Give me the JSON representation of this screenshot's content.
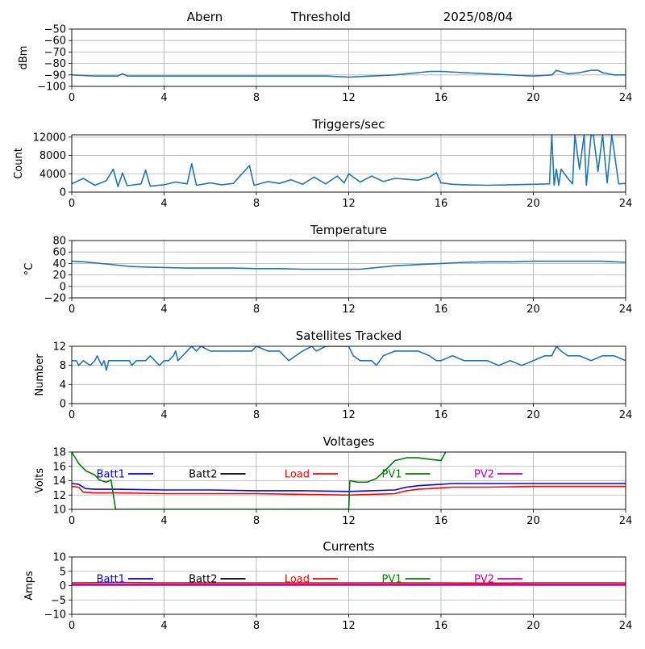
{
  "header": {
    "station": "Abern",
    "mode": "Threshold",
    "date": "2025/08/04"
  },
  "chart_data": [
    {
      "id": "rssi",
      "type": "line",
      "title": "",
      "ylabel": "dBm",
      "xlim": [
        0,
        24
      ],
      "ylim": [
        -100,
        -50
      ],
      "yticks": [
        -50,
        -60,
        -70,
        -80,
        -90,
        -100
      ],
      "xticks": [
        0,
        4,
        8,
        12,
        16,
        20,
        24
      ],
      "grid": true,
      "series": [
        {
          "color": "#1f77b4",
          "x": [
            0,
            1,
            2,
            2.2,
            2.4,
            3,
            4,
            6,
            8,
            10,
            11,
            12,
            13,
            14,
            15,
            15.5,
            16,
            17,
            18,
            19,
            20,
            20.8,
            21,
            21.5,
            22,
            22.5,
            22.8,
            23,
            23.5,
            24
          ],
          "y": [
            -90,
            -91,
            -91,
            -89,
            -91,
            -91,
            -91,
            -91,
            -91,
            -91,
            -91,
            -92,
            -91,
            -90,
            -88,
            -87,
            -87,
            -88,
            -89,
            -90,
            -91,
            -90,
            -86,
            -89,
            -88,
            -86,
            -86,
            -88,
            -90,
            -90
          ]
        }
      ]
    },
    {
      "id": "triggers",
      "type": "line",
      "title": "Triggers/sec",
      "ylabel": "Count",
      "xlim": [
        0,
        24
      ],
      "ylim": [
        0,
        12500
      ],
      "yticks": [
        0,
        4000,
        8000,
        12000
      ],
      "xticks": [
        0,
        4,
        8,
        12,
        16,
        20,
        24
      ],
      "grid": true,
      "series": [
        {
          "color": "#1f77b4",
          "x": [
            0,
            0.5,
            1,
            1.5,
            1.8,
            2,
            2.2,
            2.4,
            3,
            3.2,
            3.4,
            4,
            4.5,
            5,
            5.2,
            5.4,
            6,
            6.5,
            7,
            7.7,
            7.9,
            8,
            8.5,
            9,
            9.5,
            10,
            10.5,
            11,
            11.5,
            11.8,
            12,
            12.5,
            13,
            13.5,
            14,
            14.5,
            15,
            15.5,
            15.8,
            16,
            16.5,
            17,
            18,
            19,
            20,
            20.7,
            20.8,
            20.9,
            21,
            21.1,
            21.2,
            21.5,
            21.7,
            21.8,
            22,
            22.2,
            22.3,
            22.5,
            22.6,
            22.8,
            23,
            23.2,
            23.4,
            23.7,
            24
          ],
          "y": [
            1800,
            3000,
            1500,
            2500,
            5000,
            1200,
            4200,
            1400,
            1800,
            4800,
            1300,
            1600,
            2200,
            1800,
            6200,
            1500,
            2000,
            1600,
            1900,
            5800,
            1500,
            1600,
            2300,
            1900,
            2700,
            1700,
            3300,
            1800,
            3500,
            2000,
            4000,
            2200,
            3500,
            2300,
            3000,
            2800,
            2600,
            3300,
            4200,
            2000,
            1700,
            1600,
            1500,
            1600,
            1700,
            1800,
            12500,
            1500,
            5000,
            1500,
            5000,
            3000,
            1800,
            12500,
            5000,
            12500,
            1500,
            12500,
            12500,
            4500,
            12500,
            2000,
            12500,
            1800,
            1900
          ]
        }
      ]
    },
    {
      "id": "temperature",
      "type": "line",
      "title": "Temperature",
      "ylabel": "°C",
      "xlim": [
        0,
        24
      ],
      "ylim": [
        -20,
        80
      ],
      "yticks": [
        -20,
        0,
        20,
        40,
        60,
        80
      ],
      "xticks": [
        0,
        4,
        8,
        12,
        16,
        20,
        24
      ],
      "grid": true,
      "series": [
        {
          "color": "#1f77b4",
          "x": [
            0,
            0.5,
            1,
            1.5,
            2,
            2.5,
            3,
            4,
            5,
            6,
            7,
            8,
            9,
            10,
            11,
            12,
            12.5,
            13,
            13.5,
            14,
            15,
            16,
            16.5,
            17,
            18,
            19,
            20,
            21,
            22,
            23,
            23.5,
            24
          ],
          "y": [
            44,
            43,
            41,
            39,
            37,
            35,
            34,
            33,
            32,
            32,
            32,
            31,
            31,
            30,
            30,
            30,
            30,
            32,
            34,
            36,
            38,
            40,
            41,
            42,
            43,
            43,
            44,
            44,
            44,
            44,
            43,
            42
          ]
        }
      ]
    },
    {
      "id": "satellites",
      "type": "line",
      "title": "Satellites Tracked",
      "ylabel": "Number",
      "xlim": [
        0,
        24
      ],
      "ylim": [
        0,
        12
      ],
      "yticks": [
        0,
        4,
        8,
        12
      ],
      "xticks": [
        0,
        4,
        8,
        12,
        16,
        20,
        24
      ],
      "grid": true,
      "series": [
        {
          "color": "#1f77b4",
          "x": [
            0,
            0.2,
            0.3,
            0.5,
            0.8,
            1,
            1.1,
            1.2,
            1.3,
            1.4,
            1.5,
            1.6,
            2,
            2.5,
            2.6,
            2.8,
            3,
            3.2,
            3.4,
            3.6,
            3.8,
            4,
            4.2,
            4.4,
            4.5,
            4.6,
            5,
            5.2,
            5.4,
            5.6,
            6,
            7,
            7.5,
            7.8,
            8,
            8.5,
            9,
            9.2,
            9.4,
            10,
            10.4,
            10.6,
            11,
            12,
            12.2,
            12.5,
            13,
            13.2,
            13.5,
            14,
            14.5,
            15,
            15.5,
            15.8,
            16,
            16.5,
            17,
            17.5,
            18,
            18.5,
            19,
            19.5,
            20,
            20.5,
            20.8,
            21,
            21.2,
            21.5,
            22,
            22.5,
            23,
            23.5,
            24
          ],
          "y": [
            9,
            9,
            8,
            9,
            8,
            9,
            10,
            9,
            8,
            9,
            7,
            9,
            9,
            9,
            8,
            9,
            9,
            9,
            10,
            9,
            8,
            9,
            9,
            10,
            11,
            9,
            11,
            12,
            11,
            12,
            11,
            11,
            11,
            11,
            12,
            11,
            11,
            10,
            9,
            11,
            12,
            11,
            12,
            12,
            10,
            9,
            9,
            8,
            10,
            11,
            11,
            11,
            10,
            9,
            9,
            10,
            9,
            9,
            9,
            8,
            9,
            8,
            9,
            10,
            10,
            12,
            11,
            10,
            10,
            9,
            10,
            10,
            9
          ]
        }
      ]
    },
    {
      "id": "voltages",
      "type": "line",
      "title": "Voltages",
      "ylabel": "Volts",
      "xlim": [
        0,
        24
      ],
      "ylim": [
        10,
        18
      ],
      "yticks": [
        10,
        12,
        14,
        16,
        18
      ],
      "xticks": [
        0,
        4,
        8,
        12,
        16,
        20,
        24
      ],
      "grid": true,
      "series": [
        {
          "name": "Batt1",
          "color": "#0000ff",
          "x": [
            0,
            0.3,
            0.6,
            1,
            2,
            4,
            6,
            8,
            10,
            12,
            13,
            14,
            14.5,
            15,
            15.5,
            16,
            16.5,
            17,
            18,
            20,
            22,
            24
          ],
          "y": [
            13.6,
            13.5,
            12.9,
            12.8,
            12.8,
            12.7,
            12.7,
            12.6,
            12.6,
            12.5,
            12.6,
            12.7,
            13.1,
            13.3,
            13.4,
            13.5,
            13.6,
            13.6,
            13.6,
            13.6,
            13.6,
            13.6
          ]
        },
        {
          "name": "Batt2",
          "color": "#000000",
          "x": [],
          "y": []
        },
        {
          "name": "Load",
          "color": "#ff0000",
          "x": [
            0,
            0.3,
            0.5,
            1,
            2,
            4,
            6,
            8,
            10,
            12,
            13,
            14,
            14.5,
            15,
            15.5,
            16,
            16.5,
            17,
            18,
            20,
            22,
            24
          ],
          "y": [
            13.2,
            13.1,
            12.4,
            12.3,
            12.3,
            12.2,
            12.2,
            12.2,
            12.1,
            12.0,
            12.1,
            12.2,
            12.6,
            12.8,
            12.9,
            13.0,
            13.1,
            13.1,
            13.1,
            13.2,
            13.2,
            13.2
          ]
        },
        {
          "name": "PV1",
          "color": "#008000",
          "x": [
            0,
            0.3,
            0.6,
            1,
            1.2,
            1.5,
            1.7,
            1.9,
            12,
            12.05,
            12.4,
            12.8,
            13.2,
            13.6,
            14,
            14.5,
            15,
            15.5,
            16,
            16.2
          ],
          "y": [
            18,
            16.4,
            15.4,
            14.8,
            14.1,
            13.8,
            14.1,
            10,
            10,
            14,
            13.8,
            13.8,
            14.3,
            15.5,
            16.8,
            17.2,
            17.2,
            17,
            16.8,
            18
          ]
        },
        {
          "name": "PV2",
          "color": "#bf00bf",
          "x": [],
          "y": []
        }
      ]
    },
    {
      "id": "currents",
      "type": "line",
      "title": "Currents",
      "ylabel": "Amps",
      "xlim": [
        0,
        24
      ],
      "ylim": [
        -10,
        10
      ],
      "yticks": [
        -10,
        -5,
        0,
        5,
        10
      ],
      "xticks": [
        0,
        4,
        8,
        12,
        16,
        20,
        24
      ],
      "grid": true,
      "series": [
        {
          "name": "Batt1",
          "color": "#0000ff",
          "x": [
            0,
            24
          ],
          "y": [
            0.4,
            0.4
          ]
        },
        {
          "name": "Batt2",
          "color": "#000000",
          "x": [],
          "y": []
        },
        {
          "name": "Load",
          "color": "#ff0000",
          "x": [
            0,
            2,
            4,
            6,
            8,
            10,
            12,
            14,
            16,
            18,
            20,
            22,
            24
          ],
          "y": [
            1.0,
            1.1,
            1.0,
            1.0,
            1.0,
            1.0,
            1.0,
            1.0,
            1.0,
            0.9,
            1.0,
            1.0,
            1.0
          ]
        },
        {
          "name": "PV1",
          "color": "#008000",
          "x": [],
          "y": []
        },
        {
          "name": "PV2",
          "color": "#bf00bf",
          "x": [
            0,
            24
          ],
          "y": [
            0.2,
            0.2
          ]
        }
      ]
    }
  ]
}
